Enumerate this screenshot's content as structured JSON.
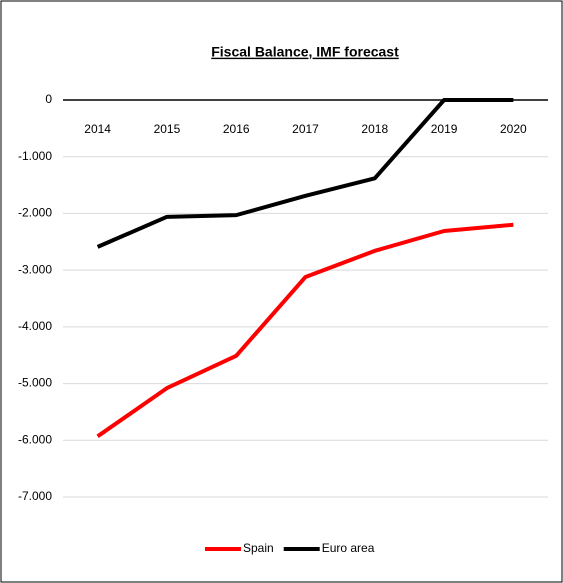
{
  "chart_data": {
    "type": "line",
    "title": "Fiscal Balance, IMF forecast",
    "categories": [
      "2014",
      "2015",
      "2016",
      "2017",
      "2018",
      "2019",
      "2020"
    ],
    "series": [
      {
        "name": "Spain",
        "color": "#ff0000",
        "values": [
          -5.93,
          -5.08,
          -4.51,
          -3.12,
          -2.66,
          -2.31,
          -2.2
        ]
      },
      {
        "name": "Euro area",
        "color": "#000000",
        "values": [
          -2.59,
          -2.06,
          -2.03,
          -1.69,
          -1.38,
          0,
          0
        ]
      }
    ],
    "ylim": [
      -7,
      0
    ],
    "yticks": [
      {
        "value": -7,
        "label": "-7.000"
      },
      {
        "value": -6,
        "label": "-6.000"
      },
      {
        "value": -5,
        "label": "-5.000"
      },
      {
        "value": -4,
        "label": "-4.000"
      },
      {
        "value": -3,
        "label": "-3.000"
      },
      {
        "value": -2,
        "label": "-2.000"
      },
      {
        "value": -1,
        "label": "-1.000"
      },
      0
    ],
    "grid": true,
    "legend": "bottom"
  }
}
